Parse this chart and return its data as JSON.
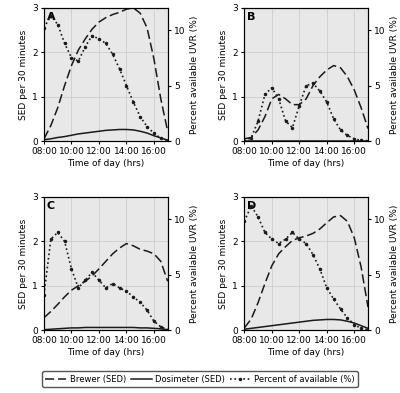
{
  "background_color": "#ffffff",
  "panel_bg": "#e8e8e8",
  "time_hours": [
    8.0,
    8.5,
    9.0,
    9.5,
    10.0,
    10.5,
    11.0,
    11.5,
    12.0,
    12.5,
    13.0,
    13.5,
    14.0,
    14.5,
    15.0,
    15.5,
    16.0,
    16.5,
    17.0
  ],
  "panels": {
    "A": {
      "brewer": [
        0.05,
        0.35,
        0.75,
        1.25,
        1.7,
        2.05,
        2.3,
        2.52,
        2.68,
        2.78,
        2.85,
        2.9,
        2.97,
        3.0,
        2.88,
        2.55,
        1.85,
        0.95,
        0.22
      ],
      "dosimeter": [
        0.03,
        0.05,
        0.08,
        0.1,
        0.13,
        0.16,
        0.18,
        0.2,
        0.22,
        0.24,
        0.25,
        0.26,
        0.26,
        0.25,
        0.22,
        0.18,
        0.12,
        0.07,
        0.02
      ],
      "percent": [
        10.2,
        11.3,
        10.5,
        8.8,
        7.5,
        7.2,
        8.5,
        9.5,
        9.2,
        8.8,
        7.8,
        6.5,
        5.0,
        3.5,
        2.2,
        1.3,
        0.7,
        0.25,
        0.05
      ]
    },
    "B": {
      "brewer": [
        0.05,
        0.08,
        0.25,
        0.55,
        0.95,
        1.05,
        0.95,
        0.82,
        0.82,
        0.95,
        1.25,
        1.45,
        1.6,
        1.7,
        1.65,
        1.45,
        1.15,
        0.75,
        0.28
      ],
      "dosimeter": [
        0.01,
        0.01,
        0.01,
        0.01,
        0.01,
        0.01,
        0.01,
        0.01,
        0.01,
        0.01,
        0.01,
        0.01,
        0.01,
        0.01,
        0.01,
        0.01,
        0.01,
        0.01,
        0.01
      ],
      "percent": [
        0.0,
        0.3,
        1.8,
        4.2,
        4.8,
        3.8,
        1.8,
        1.2,
        3.2,
        5.0,
        5.2,
        4.5,
        3.5,
        2.0,
        1.0,
        0.5,
        0.2,
        0.05,
        0.02
      ]
    },
    "C": {
      "brewer": [
        0.28,
        0.42,
        0.58,
        0.75,
        0.9,
        1.0,
        1.1,
        1.22,
        1.38,
        1.55,
        1.72,
        1.85,
        1.95,
        1.9,
        1.82,
        1.78,
        1.72,
        1.55,
        1.1
      ],
      "dosimeter": [
        0.01,
        0.02,
        0.03,
        0.04,
        0.05,
        0.05,
        0.06,
        0.06,
        0.06,
        0.06,
        0.06,
        0.06,
        0.06,
        0.06,
        0.05,
        0.05,
        0.04,
        0.03,
        0.01
      ],
      "percent": [
        3.2,
        8.2,
        8.8,
        8.0,
        5.5,
        3.8,
        4.5,
        5.2,
        4.5,
        3.8,
        4.2,
        3.8,
        3.5,
        3.0,
        2.5,
        1.8,
        0.8,
        0.3,
        0.05
      ]
    },
    "D": {
      "brewer": [
        0.05,
        0.25,
        0.62,
        1.05,
        1.45,
        1.72,
        1.88,
        2.02,
        2.08,
        2.12,
        2.18,
        2.28,
        2.42,
        2.55,
        2.58,
        2.45,
        2.08,
        1.42,
        0.52
      ],
      "dosimeter": [
        0.02,
        0.04,
        0.06,
        0.08,
        0.1,
        0.12,
        0.14,
        0.16,
        0.18,
        0.2,
        0.22,
        0.23,
        0.24,
        0.24,
        0.23,
        0.2,
        0.16,
        0.1,
        0.04
      ],
      "percent": [
        9.8,
        11.2,
        10.2,
        8.8,
        8.2,
        7.8,
        8.2,
        8.8,
        8.2,
        7.8,
        6.8,
        5.5,
        3.8,
        2.8,
        1.9,
        1.1,
        0.5,
        0.15,
        0.05
      ]
    }
  },
  "ylim_sed": [
    0,
    3.0
  ],
  "ylim_pct": [
    0,
    12.0
  ],
  "yticks_sed": [
    0,
    1,
    2,
    3
  ],
  "yticks_pct": [
    0,
    5,
    10
  ],
  "xticks": [
    8,
    10,
    12,
    14,
    16
  ],
  "xticklabels": [
    "08:00",
    "10:00",
    "12:00",
    "14:00",
    "16:00"
  ],
  "xlim": [
    8,
    17
  ],
  "xlabel": "Time of day (hrs)",
  "ylabel_left": "SED per 30 minutes",
  "ylabel_right": "Percent available UVR (%)",
  "panel_labels": [
    "A",
    "B",
    "C",
    "D"
  ],
  "legend_labels": [
    "Brewer (SED)",
    "Dosimeter (SED)",
    "Percent of available (%)"
  ],
  "line_color": "#1a1a1a",
  "font_size": 6.5,
  "label_font_size": 6.5,
  "panel_label_size": 8
}
